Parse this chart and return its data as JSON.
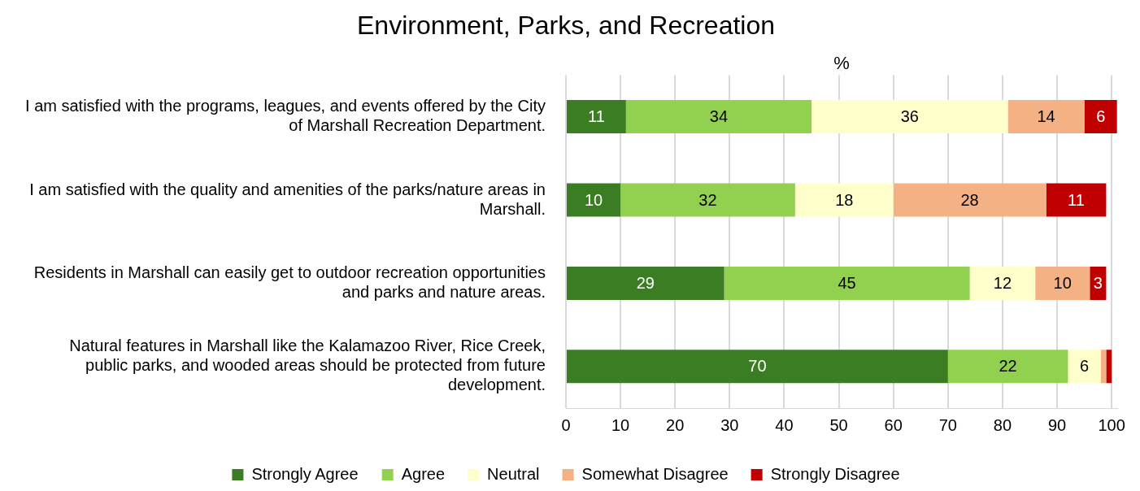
{
  "chart_data": {
    "type": "bar",
    "orientation": "horizontal",
    "stacked": true,
    "title": "Environment, Parks, and Recreation",
    "xlabel": "%",
    "categories": [
      "I am satisfied with the programs, leagues, and events offered by the City of Marshall Recreation Department.",
      "I am satisfied with the quality and amenities of the parks/nature areas in Marshall.",
      "Residents in Marshall can easily get to outdoor recreation opportunities and parks and nature areas.",
      "Natural features in Marshall like the Kalamazoo River, Rice Creek, public parks, and wooded areas should be protected from future development."
    ],
    "series": [
      {
        "name": "Strongly Agree",
        "color": "#3b7d23",
        "values": [
          11,
          10,
          29,
          70
        ]
      },
      {
        "name": "Agree",
        "color": "#92d050",
        "values": [
          34,
          32,
          45,
          22
        ]
      },
      {
        "name": "Neutral",
        "color": "#ffffcc",
        "values": [
          36,
          18,
          12,
          6
        ]
      },
      {
        "name": "Somewhat Disagree",
        "color": "#f4b183",
        "values": [
          14,
          28,
          10,
          1
        ],
        "value_labels": [
          "14",
          "28",
          "10",
          null
        ]
      },
      {
        "name": "Strongly Disagree",
        "color": "#c00000",
        "values": [
          6,
          11,
          3,
          1
        ],
        "value_labels": [
          "6",
          "11",
          "3",
          null
        ]
      }
    ],
    "xlim": [
      0,
      101
    ],
    "xticks": [
      0,
      10,
      20,
      30,
      40,
      50,
      60,
      70,
      80,
      90,
      100
    ],
    "grid": "x",
    "legend": "bottom",
    "data_labels": true
  }
}
